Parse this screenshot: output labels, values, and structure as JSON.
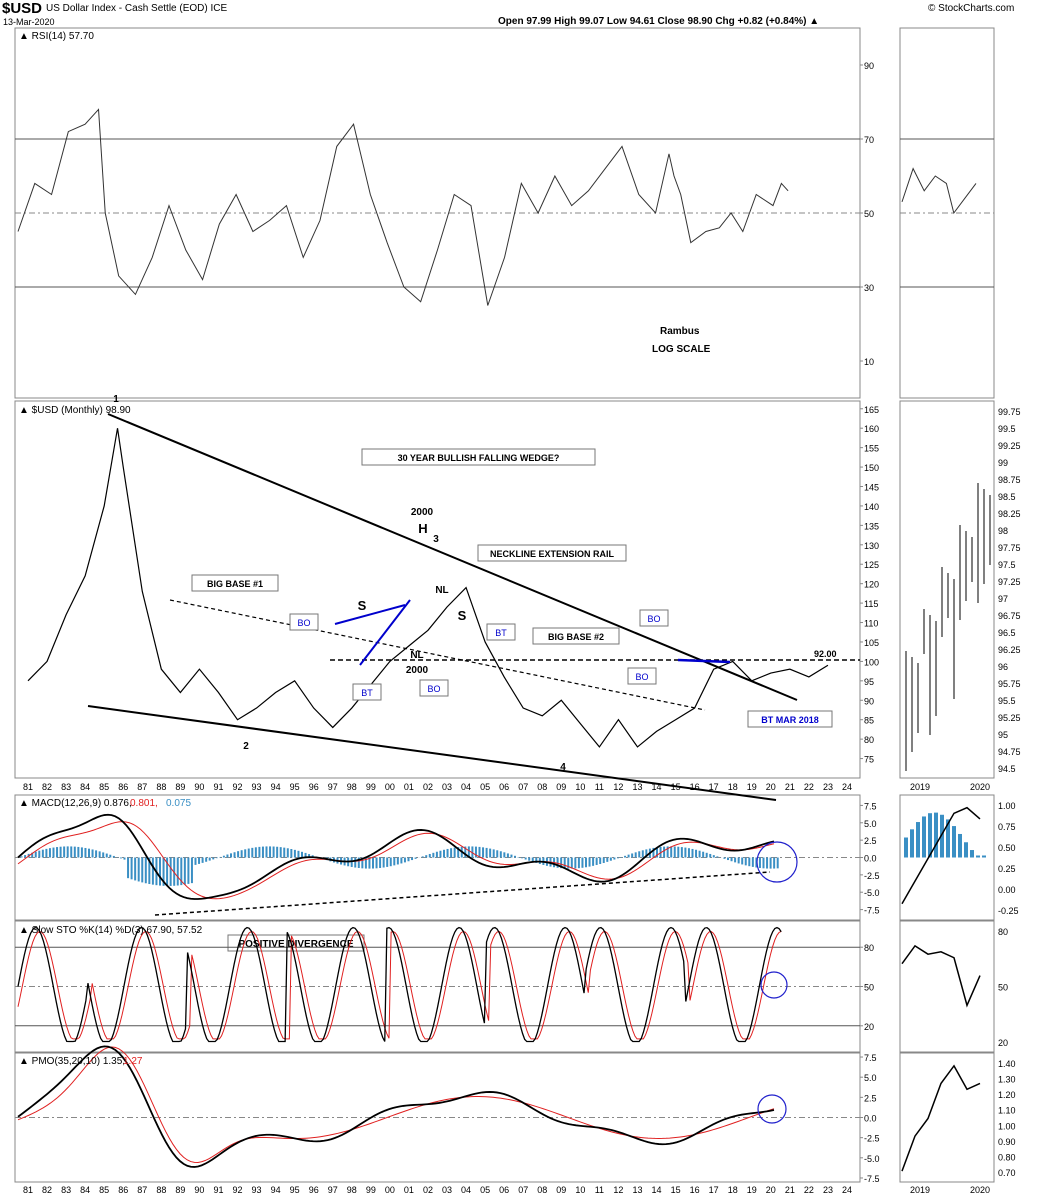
{
  "header": {
    "symbol": "$USD",
    "name": "US Dollar Index - Cash Settle (EOD) ICE",
    "date": "13-Mar-2020",
    "copyright": "© StockCharts.com",
    "ohlc": "Open 97.99  High 99.07  Low 94.61  Close 98.90  Chg +0.82 (+0.84%) ▲"
  },
  "chart_data": {
    "type": "line",
    "x_ticks": [
      "81",
      "82",
      "83",
      "84",
      "85",
      "86",
      "87",
      "88",
      "89",
      "90",
      "91",
      "92",
      "93",
      "94",
      "95",
      "96",
      "97",
      "98",
      "99",
      "00",
      "01",
      "02",
      "03",
      "04",
      "05",
      "06",
      "07",
      "08",
      "09",
      "10",
      "11",
      "12",
      "13",
      "14",
      "15",
      "16",
      "17",
      "18",
      "19",
      "20",
      "21",
      "22",
      "23",
      "24"
    ],
    "panels": {
      "rsi": {
        "label": "RSI(14) 57.70",
        "yticks": [
          90,
          70,
          50,
          30,
          10
        ],
        "ylim": [
          0,
          100
        ],
        "series": [
          [
            0,
            45
          ],
          [
            1,
            58
          ],
          [
            2,
            55
          ],
          [
            3,
            72
          ],
          [
            4,
            74
          ],
          [
            4.8,
            78
          ],
          [
            5.2,
            50
          ],
          [
            6,
            33
          ],
          [
            7,
            28
          ],
          [
            8,
            38
          ],
          [
            9,
            52
          ],
          [
            10,
            40
          ],
          [
            11,
            32
          ],
          [
            12,
            47
          ],
          [
            13,
            55
          ],
          [
            14,
            45
          ],
          [
            15,
            48
          ],
          [
            16,
            52
          ],
          [
            17,
            38
          ],
          [
            18,
            48
          ],
          [
            19,
            68
          ],
          [
            20,
            74
          ],
          [
            21,
            55
          ],
          [
            22,
            42
          ],
          [
            23,
            30
          ],
          [
            24,
            26
          ],
          [
            25,
            40
          ],
          [
            26,
            55
          ],
          [
            27,
            52
          ],
          [
            28,
            25
          ],
          [
            29,
            38
          ],
          [
            30,
            58
          ],
          [
            31,
            50
          ],
          [
            32,
            60
          ],
          [
            33,
            52
          ],
          [
            34,
            56
          ],
          [
            35,
            62
          ],
          [
            36,
            68
          ],
          [
            37,
            55
          ],
          [
            38,
            50
          ],
          [
            38.8,
            66
          ],
          [
            39.1,
            60
          ],
          [
            39.5,
            55
          ],
          [
            40.1,
            42
          ],
          [
            41,
            45
          ],
          [
            41.8,
            46
          ],
          [
            42.5,
            50
          ],
          [
            43.2,
            45
          ],
          [
            44.0,
            55
          ],
          [
            45.0,
            52
          ],
          [
            45.5,
            58
          ],
          [
            45.9,
            56
          ]
        ],
        "mini_series": [
          [
            0,
            53
          ],
          [
            0.15,
            62
          ],
          [
            0.3,
            56
          ],
          [
            0.45,
            60
          ],
          [
            0.6,
            58
          ],
          [
            0.7,
            50
          ],
          [
            0.85,
            54
          ],
          [
            1,
            58
          ]
        ],
        "annotations": [
          "Rambus",
          "LOG SCALE"
        ]
      },
      "price": {
        "label": "$USD (Monthly) 98.90",
        "yticks": [
          165,
          160,
          155,
          150,
          145,
          140,
          135,
          130,
          125,
          120,
          115,
          110,
          105,
          100,
          95,
          90,
          85,
          80,
          75
        ],
        "ylim": [
          70,
          167
        ],
        "series": [
          [
            0,
            95
          ],
          [
            1,
            100
          ],
          [
            2,
            112
          ],
          [
            3,
            122
          ],
          [
            4,
            140
          ],
          [
            4.7,
            160
          ],
          [
            5,
            150
          ],
          [
            6,
            118
          ],
          [
            7,
            98
          ],
          [
            8,
            92
          ],
          [
            9,
            98
          ],
          [
            10,
            92
          ],
          [
            11,
            85
          ],
          [
            12,
            88
          ],
          [
            13,
            92
          ],
          [
            14,
            95
          ],
          [
            15,
            88
          ],
          [
            16,
            83
          ],
          [
            17,
            88
          ],
          [
            18,
            94
          ],
          [
            19,
            100
          ],
          [
            20,
            104
          ],
          [
            21,
            108
          ],
          [
            22,
            114
          ],
          [
            23,
            119
          ],
          [
            24,
            105
          ],
          [
            25,
            96
          ],
          [
            26,
            88
          ],
          [
            27,
            86
          ],
          [
            28,
            90
          ],
          [
            29,
            84
          ],
          [
            30,
            78
          ],
          [
            31,
            85
          ],
          [
            32,
            78
          ],
          [
            33,
            82
          ],
          [
            34,
            85
          ],
          [
            35,
            88
          ],
          [
            36,
            98
          ],
          [
            37,
            100
          ],
          [
            38,
            95
          ],
          [
            39,
            97
          ],
          [
            40,
            98
          ],
          [
            41,
            96
          ],
          [
            42,
            99
          ]
        ],
        "annotations": [
          "1",
          "2",
          "3",
          "4",
          "H",
          "S",
          "S",
          "2000",
          "2000",
          "NL",
          "NL",
          "BO",
          "BO",
          "BO",
          "BO",
          "BT",
          "BT",
          "BT MAR 2018",
          "30 YEAR BULLISH FALLING WEDGE?",
          "BIG BASE #1",
          "BIG BASE #2",
          "NECKLINE EXTENSION RAIL",
          "92.00"
        ],
        "mini_yticks": [
          99.75,
          99.5,
          99.25,
          99.0,
          98.75,
          98.5,
          98.25,
          98.0,
          97.75,
          97.5,
          97.25,
          97.0,
          96.75,
          96.5,
          96.25,
          96.0,
          95.75,
          95.5,
          95.25,
          95.0,
          94.75,
          94.5
        ]
      },
      "macd": {
        "label_main": "MACD(12,26,9) 0.876,",
        "label_signal": "0.801,",
        "label_hist": "0.075",
        "yticks": [
          7.5,
          5.0,
          2.5,
          0.0,
          -2.5,
          -5.0,
          -7.5
        ],
        "ylim": [
          -9,
          9
        ],
        "mini_yticks": [
          1.0,
          0.75,
          0.5,
          0.25,
          0.0,
          -0.25
        ],
        "annotations": [
          "POSITIVE DIVERGENCE"
        ]
      },
      "sto": {
        "label": "Slow STO %K(14) %D(3) 67.90, 57.52",
        "yticks": [
          80,
          50,
          20
        ],
        "ylim": [
          0,
          100
        ],
        "mini_yticks": [
          80,
          50,
          20
        ]
      },
      "pmo": {
        "label_main": "PMO(35,20,10) 1.35,",
        "label_signal": "1.27",
        "yticks": [
          7.5,
          5.0,
          2.5,
          0.0,
          -2.5,
          -5.0,
          -7.5
        ],
        "ylim": [
          -8,
          8
        ],
        "mini_yticks": [
          1.4,
          1.3,
          1.2,
          1.1,
          1.0,
          0.9,
          0.8,
          0.7
        ]
      }
    },
    "mini_x_ticks": [
      "2019",
      "2020"
    ]
  }
}
